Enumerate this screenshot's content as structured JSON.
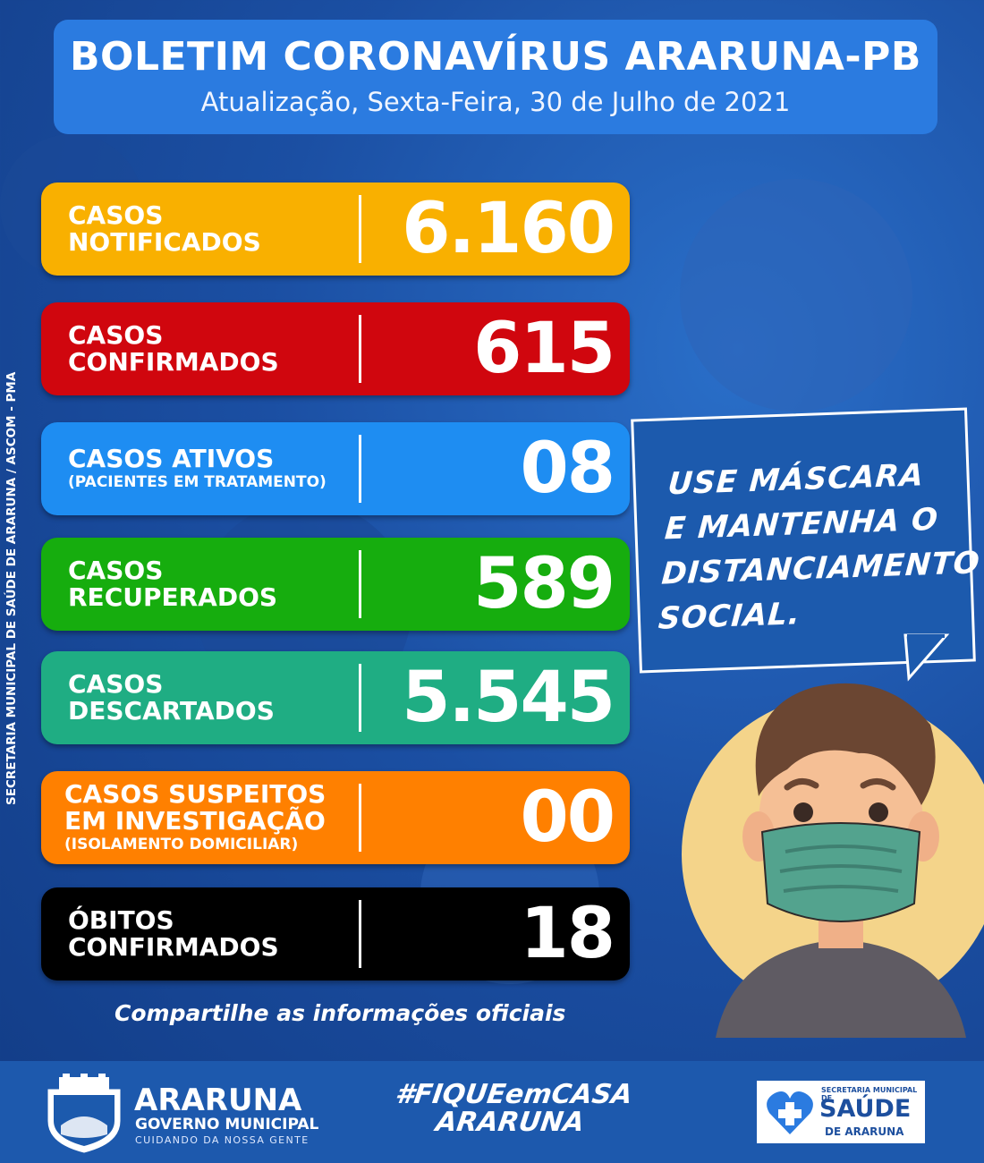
{
  "header": {
    "title": "BOLETIM CORONAVÍRUS ARARUNA-PB",
    "subtitle": "Atualização, Sexta-Feira, 30 de Julho de 2021"
  },
  "cards": [
    {
      "line1": "CASOS",
      "line2": "NOTIFICADOS",
      "value": "6.160",
      "color": "#f9b000"
    },
    {
      "line1": "CASOS",
      "line2": "CONFIRMADOS",
      "value": "615",
      "color": "#d0060e"
    },
    {
      "line1": "CASOS ATIVOS",
      "line2": "(PACIENTES EM TRATAMENTO)",
      "value": "08",
      "color": "#1e8df2"
    },
    {
      "line1": "CASOS",
      "line2": "RECUPERADOS",
      "value": "589",
      "color": "#16ad0e"
    },
    {
      "line1": "CASOS",
      "line2": "DESCARTADOS",
      "value": "5.545",
      "color": "#1fad83"
    },
    {
      "line1": "CASOS SUSPEITOS",
      "line2": "EM INVESTIGAÇÃO",
      "line3": "(ISOLAMENTO DOMICILIAR)",
      "value": "00",
      "color": "#ff8000"
    },
    {
      "line1": "ÓBITOS",
      "line2": "CONFIRMADOS",
      "value": "18",
      "color": "#000000"
    }
  ],
  "bubble": {
    "lines": [
      "USE MÁSCARA",
      "E MANTENHA O",
      "DISTANCIAMENTO",
      "SOCIAL."
    ]
  },
  "share_text": "Compartilhe as informações oficiais",
  "vertical_credit": "SECRETARIA MUNICIPAL DE SAÚDE DE ARARUNA / ASCOM - PMA",
  "footer": {
    "gov_name": "ARARUNA",
    "gov_sub": "GOVERNO MUNICIPAL",
    "gov_tag": "CUIDANDO DA NOSSA GENTE",
    "hashtag_line1": "#FIQUEemCASA",
    "hashtag_line2": "ARARUNA",
    "saude_line1": "SECRETARIA MUNICIPAL DE",
    "saude_line2": "SAÚDE",
    "saude_line3": "DE ARARUNA"
  },
  "colors": {
    "background": "#1b4fa3",
    "header_bg": "#2b7be0",
    "footer_bg": "#1d59ad"
  }
}
